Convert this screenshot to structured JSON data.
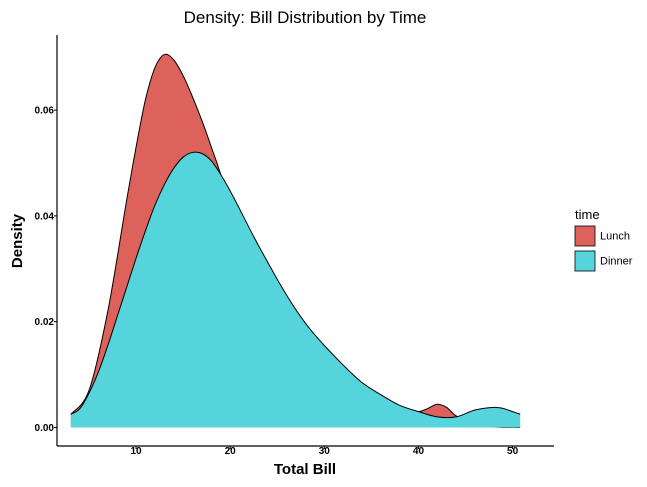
{
  "chart_data": {
    "type": "area",
    "subtype": "density",
    "title": "Density: Bill Distribution by Time",
    "xlabel": "Total Bill",
    "ylabel": "Density",
    "xlim": [
      1.6,
      54.4
    ],
    "ylim": [
      -0.0035,
      0.0742
    ],
    "x_ticks": [
      10,
      20,
      30,
      40,
      50
    ],
    "y_ticks": [
      0.0,
      0.02,
      0.04,
      0.06
    ],
    "y_tick_labels": [
      "0.00",
      "0.02",
      "0.04",
      "0.06"
    ],
    "grid": false,
    "legend": {
      "title": "time",
      "position": "right"
    },
    "series": [
      {
        "name": "Lunch",
        "color": "#DC625B",
        "x": [
          3.07,
          5,
          7,
          9,
          10,
          11,
          12,
          13,
          14,
          15,
          16,
          17,
          18,
          19,
          20,
          21,
          22,
          23,
          24,
          25,
          26,
          27,
          28,
          30,
          32,
          34,
          36,
          38,
          40,
          41,
          42,
          43,
          44,
          46,
          48,
          50.81
        ],
        "y": [
          0.0025,
          0.007,
          0.022,
          0.043,
          0.053,
          0.062,
          0.068,
          0.0705,
          0.0695,
          0.0665,
          0.0625,
          0.058,
          0.053,
          0.0478,
          0.0415,
          0.036,
          0.031,
          0.0265,
          0.0228,
          0.0195,
          0.0168,
          0.0146,
          0.0128,
          0.0098,
          0.0073,
          0.0053,
          0.0038,
          0.003,
          0.003,
          0.0036,
          0.0044,
          0.0038,
          0.0022,
          0.0005,
          0.0001,
          0.0
        ]
      },
      {
        "name": "Dinner",
        "color": "#56D4DB",
        "x": [
          3.07,
          4,
          5,
          6,
          7,
          8,
          9,
          10,
          11,
          12,
          13,
          14,
          15,
          16,
          17,
          18,
          19,
          20,
          21,
          22,
          23,
          24,
          25,
          26,
          27,
          28,
          29,
          30,
          32,
          34,
          36,
          38,
          40,
          42,
          44,
          46,
          48,
          49,
          50,
          50.81
        ],
        "y": [
          0.0025,
          0.0035,
          0.0065,
          0.0105,
          0.0155,
          0.021,
          0.0265,
          0.032,
          0.0372,
          0.042,
          0.0459,
          0.049,
          0.0511,
          0.052,
          0.0518,
          0.0504,
          0.0478,
          0.0447,
          0.0413,
          0.0378,
          0.0344,
          0.0312,
          0.028,
          0.025,
          0.0222,
          0.0197,
          0.0175,
          0.0155,
          0.0118,
          0.0085,
          0.0062,
          0.0042,
          0.003,
          0.002,
          0.002,
          0.0033,
          0.0038,
          0.0036,
          0.003,
          0.0025
        ]
      }
    ]
  }
}
